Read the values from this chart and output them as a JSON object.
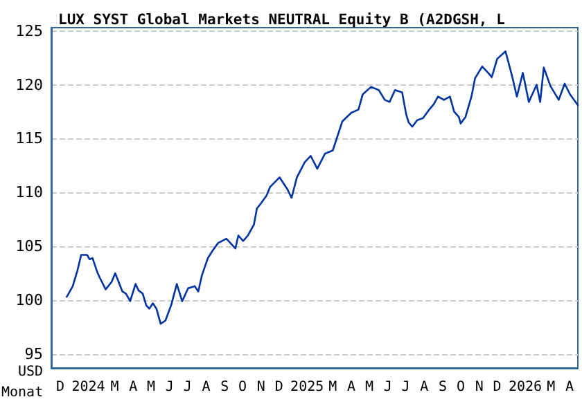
{
  "chart_data": {
    "type": "line",
    "title": "LUX SYST Global Markets NEUTRAL Equity B (A2DGSH, L",
    "xlabel": "Monat",
    "ylabel": "USD",
    "x": [
      "2023-12-27",
      "2024-01-06",
      "2024-01-14",
      "2024-01-20",
      "2024-01-30",
      "2024-02-03",
      "2024-02-08",
      "2024-02-16",
      "2024-02-20",
      "2024-03-01",
      "2024-03-11",
      "2024-03-17",
      "2024-03-29",
      "2024-04-04",
      "2024-04-11",
      "2024-04-20",
      "2024-04-25",
      "2024-05-02",
      "2024-05-08",
      "2024-05-13",
      "2024-05-19",
      "2024-05-25",
      "2024-06-01",
      "2024-06-09",
      "2024-06-19",
      "2024-06-28",
      "2024-07-07",
      "2024-07-17",
      "2024-07-28",
      "2024-08-03",
      "2024-08-09",
      "2024-08-19",
      "2024-08-27",
      "2024-09-05",
      "2024-09-19",
      "2024-10-04",
      "2024-10-09",
      "2024-10-17",
      "2024-10-25",
      "2024-11-04",
      "2024-11-09",
      "2024-11-16",
      "2024-11-25",
      "2024-12-01",
      "2024-12-17",
      "2024-12-30",
      "2025-01-06",
      "2025-01-15",
      "2025-01-28",
      "2025-02-07",
      "2025-02-18",
      "2025-03-03",
      "2025-03-16",
      "2025-04-01",
      "2025-04-16",
      "2025-04-28",
      "2025-05-05",
      "2025-05-19",
      "2025-06-01",
      "2025-06-11",
      "2025-06-19",
      "2025-06-28",
      "2025-07-10",
      "2025-07-17",
      "2025-07-21",
      "2025-07-27",
      "2025-08-04",
      "2025-08-14",
      "2025-08-23",
      "2025-09-01",
      "2025-09-08",
      "2025-09-18",
      "2025-09-28",
      "2025-10-05",
      "2025-10-13",
      "2025-10-16",
      "2025-10-24",
      "2025-11-03",
      "2025-11-09",
      "2025-11-21",
      "2025-12-01",
      "2025-12-07",
      "2025-12-16",
      "2025-12-30",
      "2026-01-10",
      "2026-01-18",
      "2026-01-28",
      "2026-02-07",
      "2026-02-20",
      "2026-02-26",
      "2026-03-04",
      "2026-03-15",
      "2026-03-29",
      "2026-04-08",
      "2026-04-17",
      "2026-04-30"
    ],
    "series": [
      {
        "color": "#0033a0",
        "values": [
          100.3,
          101.3,
          102.8,
          104.2,
          104.2,
          103.8,
          103.9,
          102.6,
          102.1,
          101.0,
          101.7,
          102.5,
          100.8,
          100.6,
          99.9,
          101.5,
          100.9,
          100.6,
          99.5,
          99.2,
          99.7,
          99.2,
          97.8,
          98.1,
          99.6,
          101.5,
          99.9,
          101.1,
          101.3,
          100.8,
          102.3,
          103.9,
          104.6,
          105.3,
          105.7,
          104.8,
          106.0,
          105.5,
          106.0,
          107.0,
          108.5,
          109.0,
          109.7,
          110.5,
          111.4,
          110.3,
          109.5,
          111.4,
          112.8,
          113.4,
          112.2,
          113.6,
          113.9,
          116.6,
          117.4,
          117.7,
          119.1,
          119.8,
          119.5,
          118.6,
          118.4,
          119.5,
          119.3,
          117.2,
          116.5,
          116.1,
          116.7,
          116.9,
          117.6,
          118.2,
          118.9,
          118.6,
          118.9,
          117.5,
          117.0,
          116.4,
          117.0,
          118.9,
          120.6,
          121.7,
          121.1,
          120.7,
          122.4,
          123.1,
          120.8,
          118.9,
          121.1,
          118.4,
          120.0,
          118.4,
          121.6,
          119.9,
          118.6,
          120.1,
          119.1,
          118.1
        ]
      }
    ],
    "xlim": [
      "2023-12-01",
      "2026-04-30"
    ],
    "xticks": [
      {
        "value": "2023-12-16",
        "label": "D"
      },
      {
        "value": "2024-02-01",
        "label": "2024"
      },
      {
        "value": "2024-03-16",
        "label": "M"
      },
      {
        "value": "2024-04-16",
        "label": "A"
      },
      {
        "value": "2024-05-16",
        "label": "M"
      },
      {
        "value": "2024-06-16",
        "label": "J"
      },
      {
        "value": "2024-07-16",
        "label": "J"
      },
      {
        "value": "2024-08-16",
        "label": "A"
      },
      {
        "value": "2024-09-16",
        "label": "S"
      },
      {
        "value": "2024-10-16",
        "label": "O"
      },
      {
        "value": "2024-11-16",
        "label": "N"
      },
      {
        "value": "2024-12-16",
        "label": "D"
      },
      {
        "value": "2025-02-01",
        "label": "2025"
      },
      {
        "value": "2025-03-16",
        "label": "M"
      },
      {
        "value": "2025-04-16",
        "label": "A"
      },
      {
        "value": "2025-05-16",
        "label": "M"
      },
      {
        "value": "2025-06-16",
        "label": "J"
      },
      {
        "value": "2025-07-16",
        "label": "J"
      },
      {
        "value": "2025-08-16",
        "label": "A"
      },
      {
        "value": "2025-09-16",
        "label": "S"
      },
      {
        "value": "2025-10-16",
        "label": "O"
      },
      {
        "value": "2025-11-16",
        "label": "N"
      },
      {
        "value": "2025-12-16",
        "label": "D"
      },
      {
        "value": "2026-02-01",
        "label": "2026"
      },
      {
        "value": "2026-03-16",
        "label": "M"
      },
      {
        "value": "2026-04-16",
        "label": "A"
      }
    ],
    "ylim": [
      93.7,
      125.3
    ],
    "yticks": [
      95,
      100,
      105,
      110,
      115,
      120,
      125
    ],
    "grid": "y",
    "marker": "none",
    "line_style": "solid"
  }
}
